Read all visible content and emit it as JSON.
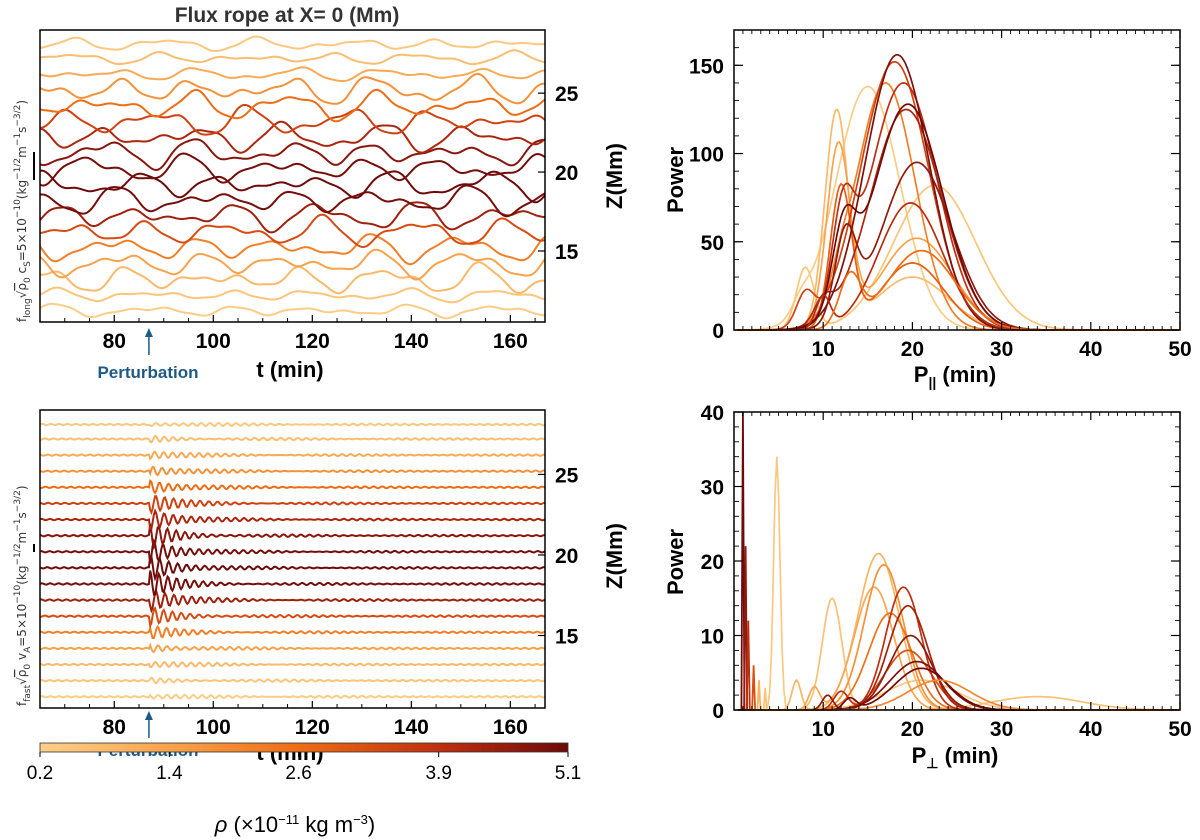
{
  "chart_data": [
    {
      "id": "top_left",
      "type": "line",
      "title": "Flux rope at X= 0 (Mm)",
      "xlabel": "t (min)",
      "ylabel": "f_long √ρ0 cs=5×10^-10 (kg^-1/2 m^-1 s^-3/2)",
      "ylabel_parts": {
        "f": "f",
        "sub1": "long",
        "mid": "ρ",
        "sub2": "0",
        "c": " c",
        "sub3": "S",
        "eq": "=5×10",
        "exp": "−10",
        "units": "(kg",
        "u1": "−1/2",
        "u2": "m",
        "u3": "−1",
        "u4": "s",
        "u5": "−3/2",
        "close": ")"
      },
      "ylabel_right": "Z(Mm)",
      "xlim": [
        65,
        167
      ],
      "x_ticks": [
        80,
        100,
        120,
        140,
        160
      ],
      "zlim": [
        10.5,
        29
      ],
      "z_ticks": [
        15,
        20,
        25
      ],
      "annotation": "Perturbation",
      "annotation_x": 87,
      "z_levels": [
        11.2,
        12.2,
        13.2,
        14.2,
        15.2,
        16.2,
        17.2,
        18.2,
        19.2,
        20.2,
        21.2,
        22.2,
        23.2,
        24.2,
        25.2,
        26.2,
        27.2,
        28.1
      ],
      "densities": [
        0.3,
        0.5,
        0.8,
        1.4,
        2.2,
        3.3,
        4.4,
        5.0,
        5.1,
        5.0,
        4.7,
        4.2,
        3.5,
        2.6,
        1.8,
        1.2,
        0.7,
        0.4
      ],
      "amplitude_z": 0.9,
      "periods_min": [
        12,
        18,
        22
      ],
      "style": "long"
    },
    {
      "id": "bottom_left",
      "type": "line",
      "title": "",
      "xlabel": "t (min)",
      "ylabel": "f_fast √ρ0 vA=5×10^-10 (kg^-1/2 m^-1 s^-3/2)",
      "ylabel_parts": {
        "f": "f",
        "sub1": "fast",
        "mid": "ρ",
        "sub2": "0",
        "c": " v",
        "sub3": "A",
        "eq": "=5×10",
        "exp": "−10",
        "units": "(kg",
        "u1": "−1/2",
        "u2": "m",
        "u3": "−1",
        "u4": "s",
        "u5": "−3/2",
        "close": ")"
      },
      "ylabel_right": "Z(Mm)",
      "xlim": [
        65,
        167
      ],
      "x_ticks": [
        80,
        100,
        120,
        140,
        160
      ],
      "zlim": [
        10.5,
        29
      ],
      "z_ticks": [
        15,
        20,
        25
      ],
      "annotation": "Perturbation",
      "annotation_x": 87,
      "z_levels": [
        11.2,
        12.2,
        13.2,
        14.2,
        15.2,
        16.2,
        17.2,
        18.2,
        19.2,
        20.2,
        21.2,
        22.2,
        23.2,
        24.2,
        25.2,
        26.2,
        27.2,
        28.1
      ],
      "densities": [
        0.3,
        0.5,
        0.8,
        1.4,
        2.2,
        3.3,
        4.4,
        5.0,
        5.1,
        5.0,
        4.7,
        4.2,
        3.5,
        2.6,
        1.8,
        1.2,
        0.7,
        0.4
      ],
      "amplitude_z": 0.35,
      "periods_min": [
        1.8
      ],
      "style": "fast"
    },
    {
      "id": "top_right",
      "type": "line",
      "title": "",
      "xlabel": "P|| (min)",
      "ylabel": "Power",
      "xlim": [
        0,
        50
      ],
      "ylim": [
        0,
        170
      ],
      "x_ticks": [
        10,
        20,
        30,
        40,
        50
      ],
      "y_ticks": [
        0,
        50,
        100,
        150
      ],
      "series": [
        {
          "density": 0.3,
          "peaks": [
            [
              7.5,
              8,
              1.0
            ],
            [
              15,
              138,
              3.6
            ]
          ]
        },
        {
          "density": 0.5,
          "peaks": [
            [
              8,
              35,
              1.0
            ],
            [
              22.5,
              82,
              4.6
            ]
          ]
        },
        {
          "density": 0.8,
          "peaks": [
            [
              11.5,
              122,
              1.3
            ],
            [
              20,
              30,
              4.0
            ]
          ]
        },
        {
          "density": 1.4,
          "peaks": [
            [
              11.7,
              102,
              1.3
            ],
            [
              20.5,
              52,
              4.0
            ]
          ]
        },
        {
          "density": 2.2,
          "peaks": [
            [
              12,
              10,
              1.0
            ],
            [
              17,
              140,
              3.3
            ]
          ]
        },
        {
          "density": 2.9,
          "peaks": [
            [
              12,
              80,
              1.2
            ],
            [
              20,
              38,
              3.5
            ]
          ]
        },
        {
          "density": 3.5,
          "peaks": [
            [
              8,
              18,
              1.0
            ],
            [
              18,
              152,
              3.8
            ]
          ]
        },
        {
          "density": 3.9,
          "peaks": [
            [
              12.2,
              52,
              1.2
            ],
            [
              19,
              140,
              3.8
            ]
          ]
        },
        {
          "density": 4.2,
          "peaks": [
            [
              10,
              12,
              1.0
            ],
            [
              19.3,
              125,
              4.0
            ]
          ]
        },
        {
          "density": 4.6,
          "peaks": [
            [
              12.5,
              48,
              1.2
            ],
            [
              20.5,
              95,
              3.9
            ]
          ]
        },
        {
          "density": 4.9,
          "peaks": [
            [
              18.3,
              156,
              3.6
            ]
          ]
        },
        {
          "density": 5.1,
          "peaks": [
            [
              12.3,
              45,
              1.3
            ],
            [
              19.5,
              128,
              3.9
            ]
          ]
        },
        {
          "density": 4.0,
          "peaks": [
            [
              10,
              18,
              0.8
            ],
            [
              19.8,
              72,
              3.6
            ]
          ]
        },
        {
          "density": 2.6,
          "peaks": [
            [
              13,
              28,
              1.2
            ],
            [
              21,
              45,
              3.8
            ]
          ]
        }
      ]
    },
    {
      "id": "bottom_right",
      "type": "line",
      "title": "",
      "xlabel": "P⊥ (min)",
      "ylabel": "Power",
      "xlim": [
        0,
        50
      ],
      "ylim": [
        0,
        40
      ],
      "x_ticks": [
        10,
        20,
        30,
        40,
        50
      ],
      "y_ticks": [
        0,
        10,
        20,
        30,
        40
      ],
      "series": [
        {
          "density": 0.4,
          "peaks": [
            [
              4.8,
              34,
              0.35
            ],
            [
              21,
              4,
              4.0
            ]
          ]
        },
        {
          "density": 0.6,
          "peaks": [
            [
              11,
              15,
              1.1
            ],
            [
              34,
              1.8,
              5.0
            ]
          ]
        },
        {
          "density": 0.9,
          "peaks": [
            [
              16.2,
              21,
              2.3
            ],
            [
              7,
              4,
              0.5
            ]
          ]
        },
        {
          "density": 1.3,
          "peaks": [
            [
              15.7,
              16.5,
              2.2
            ],
            [
              9,
              3,
              0.6
            ]
          ]
        },
        {
          "density": 1.8,
          "peaks": [
            [
              16.8,
              19.5,
              2.2
            ]
          ]
        },
        {
          "density": 2.5,
          "peaks": [
            [
              17.5,
              13,
              2.4
            ]
          ]
        },
        {
          "density": 3.2,
          "peaks": [
            [
              19.5,
              8,
              2.6
            ]
          ]
        },
        {
          "density": 3.9,
          "peaks": [
            [
              19,
              16.5,
              2.0
            ],
            [
              12,
              2.5,
              0.8
            ]
          ]
        },
        {
          "density": 4.3,
          "peaks": [
            [
              19.5,
              14,
              2.2
            ]
          ]
        },
        {
          "density": 4.6,
          "peaks": [
            [
              19.8,
              10,
              2.4
            ],
            [
              10.5,
              2,
              0.6
            ]
          ]
        },
        {
          "density": 4.9,
          "peaks": [
            [
              20.5,
              6.5,
              3.0
            ]
          ]
        },
        {
          "density": 5.1,
          "peaks": [
            [
              21,
              5.6,
              3.0
            ],
            [
              13,
              1.5,
              0.7
            ]
          ]
        },
        {
          "density": 2.0,
          "peaks": [
            [
              23,
              4,
              3.5
            ]
          ]
        }
      ],
      "spikes": [
        {
          "x": 1.0,
          "y": 40,
          "density": 5.1
        },
        {
          "x": 1.3,
          "y": 22,
          "density": 4.6
        },
        {
          "x": 1.6,
          "y": 12,
          "density": 3.9
        },
        {
          "x": 2.2,
          "y": 6,
          "density": 3.2
        },
        {
          "x": 2.8,
          "y": 4,
          "density": 1.0
        },
        {
          "x": 3.5,
          "y": 3,
          "density": 0.5
        }
      ]
    }
  ],
  "colorbar": {
    "label": "ρ (×10^-11 kg m^-3)",
    "label_parts": {
      "rho": "ρ",
      "open": "(×10",
      "exp": "−11",
      "mid": " kg m",
      "exp2": "−3",
      "close": ")"
    },
    "ticks": [
      "0.2",
      "1.4",
      "2.6",
      "3.9",
      "5.1"
    ],
    "range": [
      0.2,
      5.1
    ],
    "colors": [
      "#fdd08a",
      "#f8a24a",
      "#ee6a12",
      "#c2300f",
      "#6e0a0a"
    ]
  }
}
